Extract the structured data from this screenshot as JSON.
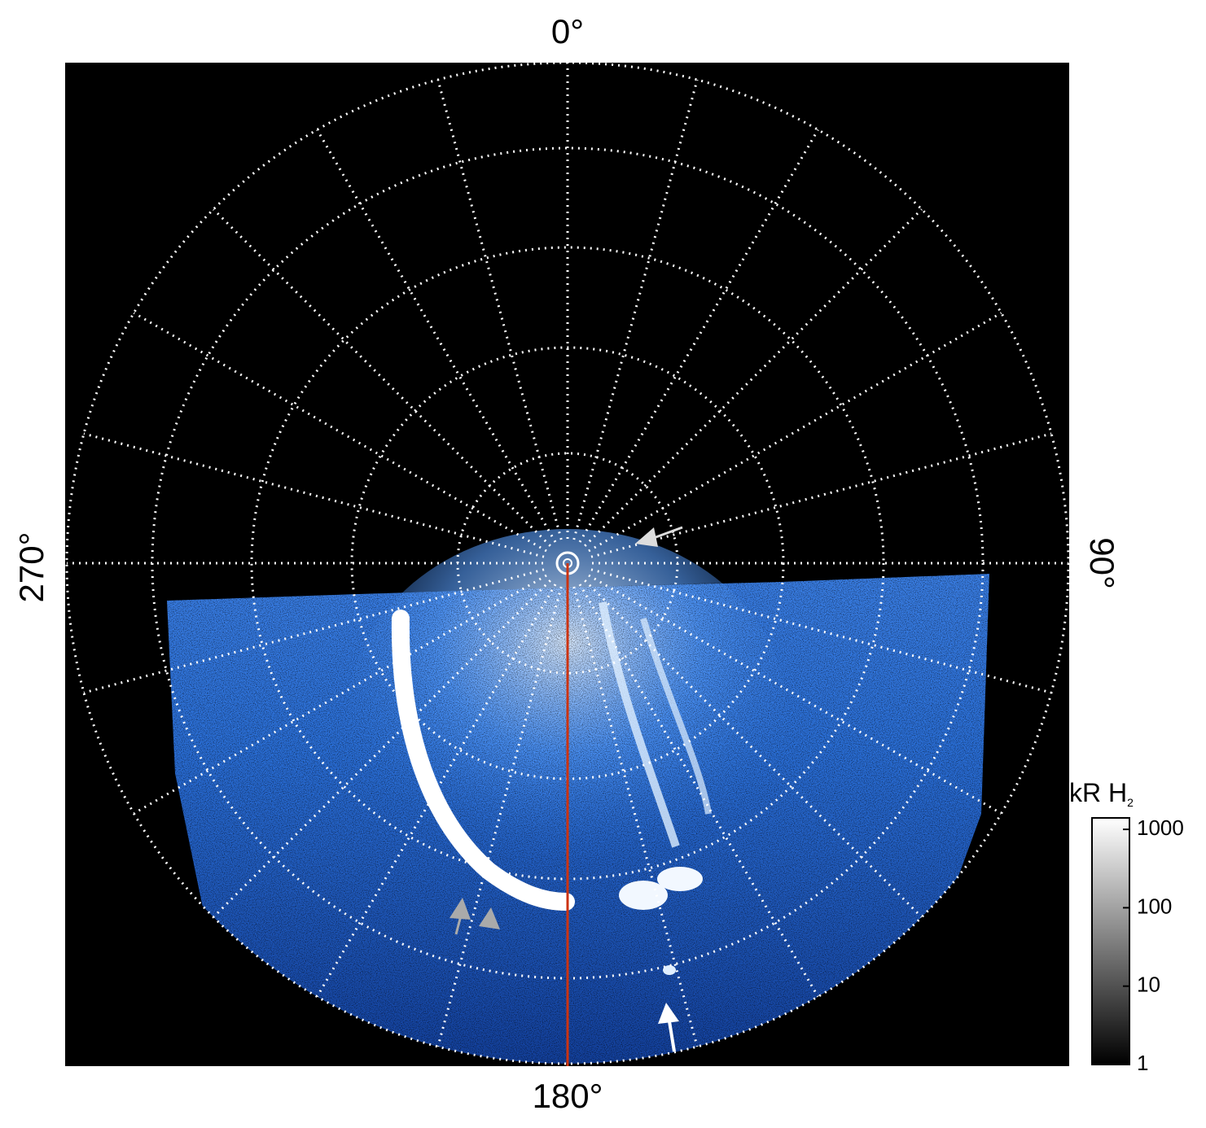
{
  "labels": {
    "top": "0°",
    "right": "90°",
    "bottom": "180°",
    "left": "270°"
  },
  "colorbar": {
    "title": "kR H",
    "title_subscript": "2",
    "scale": "log",
    "lim": [
      1,
      1400
    ],
    "ticks": [
      1,
      10,
      100,
      1000
    ]
  }
}
